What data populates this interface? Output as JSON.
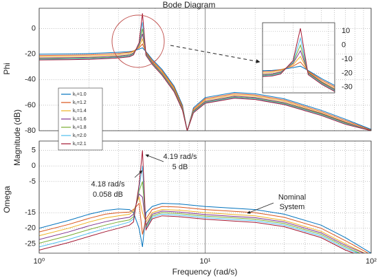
{
  "figure": {
    "title": "Bode Diagram",
    "ylabel": "Magnitude (dB)",
    "xlabel": "Frequency (rad/s)"
  },
  "chart_data": [
    {
      "type": "line",
      "ylabel": "Phi",
      "xlog": true,
      "grid": true,
      "xlim": [
        1,
        100
      ],
      "xticks": [
        {
          "value": 1,
          "label": "10⁰"
        },
        {
          "value": 10,
          "label": "10¹"
        },
        {
          "value": 100,
          "label": "10²"
        }
      ],
      "xminorticks": [
        2,
        3,
        4,
        5,
        6,
        7,
        8,
        9,
        20,
        30,
        40,
        50,
        60,
        70,
        80,
        90
      ],
      "ylim": [
        -80,
        16
      ],
      "yticks": [
        0,
        -20,
        -40,
        -60,
        -80
      ],
      "legend": "upper left",
      "x": [
        1,
        1.5,
        2,
        2.5,
        3,
        3.5,
        3.7,
        4.0,
        4.19,
        4.4,
        4.8,
        5.5,
        6.5,
        7.3,
        7.8,
        8.5,
        10,
        15,
        20,
        30,
        50,
        70,
        100
      ],
      "series": [
        {
          "name": "k₁=1.0",
          "color": "#0072BD",
          "values": [
            -20,
            -19.8,
            -19.5,
            -19,
            -18.5,
            -18,
            -17.5,
            -16,
            -15,
            -18,
            -24,
            -32,
            -45,
            -60,
            -80,
            -62,
            -54,
            -50,
            -51,
            -55,
            -64,
            -71,
            -79
          ]
        },
        {
          "name": "k₁=1.2",
          "color": "#D95319",
          "values": [
            -21,
            -20.8,
            -20.5,
            -20,
            -19.5,
            -18.5,
            -17.5,
            -15,
            -12,
            -18.5,
            -25,
            -33,
            -46,
            -61,
            -80,
            -63,
            -55,
            -51,
            -52,
            -56,
            -65,
            -72,
            -79.5
          ]
        },
        {
          "name": "k₁=1.4",
          "color": "#EDB120",
          "values": [
            -22,
            -21.8,
            -21.5,
            -21,
            -20.5,
            -19.5,
            -18,
            -14,
            -8,
            -19,
            -26,
            -34,
            -47,
            -62,
            -80,
            -64,
            -56,
            -52,
            -53,
            -57,
            -66,
            -73,
            -80
          ]
        },
        {
          "name": "k₁=1.6",
          "color": "#7E2F8E",
          "values": [
            -23,
            -22.8,
            -22.5,
            -22,
            -21.5,
            -20.5,
            -19,
            -13,
            -4,
            -19.5,
            -26.5,
            -35,
            -48,
            -62.5,
            -80,
            -64.5,
            -57,
            -53,
            -54,
            -58,
            -66.5,
            -73.5,
            -80
          ]
        },
        {
          "name": "k₁=1.8",
          "color": "#77AC30",
          "values": [
            -23.5,
            -23.3,
            -23,
            -22.5,
            -22,
            -21,
            -19.5,
            -12.5,
            0,
            -20,
            -27,
            -35.5,
            -48.5,
            -63,
            -80,
            -65,
            -57.5,
            -53.5,
            -54.5,
            -58.5,
            -67,
            -74,
            -80
          ]
        },
        {
          "name": "k₁=2.0",
          "color": "#4DBEEE",
          "values": [
            -24,
            -23.8,
            -23.5,
            -23,
            -22.5,
            -21.5,
            -20,
            -12,
            5,
            -20.5,
            -27.5,
            -36,
            -49,
            -63.5,
            -80,
            -65.5,
            -58,
            -54,
            -55,
            -59,
            -67.5,
            -74.5,
            -80
          ]
        },
        {
          "name": "k₁=2.1",
          "color": "#A2142F",
          "values": [
            -24.5,
            -24.3,
            -24,
            -23.5,
            -23,
            -22,
            -20.5,
            -11,
            12,
            -21,
            -28,
            -36.5,
            -49.5,
            -64,
            -80,
            -66,
            -58.5,
            -54.5,
            -55.5,
            -59.5,
            -68,
            -75,
            -80
          ]
        }
      ],
      "inset": {
        "xlim": [
          3.3,
          5.2
        ],
        "ylim": [
          -34,
          16
        ],
        "yticks": [
          10,
          0,
          -10,
          -20,
          -30
        ]
      }
    },
    {
      "type": "line",
      "ylabel": "Omega",
      "xlog": true,
      "grid": true,
      "xlim": [
        1,
        100
      ],
      "ylim": [
        -28,
        8
      ],
      "yticks": [
        5,
        0,
        -5,
        -15,
        -20,
        -25
      ],
      "annotations": [
        "4.19 rad/s",
        "5 dB",
        "4.18 rad/s",
        "0.058 dB",
        "Nominal",
        "System"
      ],
      "x": [
        1,
        1.5,
        2,
        2.5,
        3,
        3.5,
        3.7,
        4.0,
        4.19,
        4.4,
        4.8,
        5.5,
        7,
        10,
        15,
        20,
        30,
        50,
        70,
        100
      ],
      "series": [
        {
          "color": "#0072BD",
          "values": [
            -20,
            -17.5,
            -15.5,
            -14.3,
            -13.8,
            -14,
            -15,
            -20,
            -26,
            -15,
            -13,
            -12,
            -12.2,
            -13,
            -13.6,
            -14,
            -15.5,
            -19,
            -23,
            -28
          ]
        },
        {
          "color": "#D95319",
          "values": [
            -21.2,
            -18.8,
            -16.8,
            -15.5,
            -15,
            -14.8,
            -14,
            -12,
            -22,
            -17,
            -14,
            -13,
            -13.2,
            -14,
            -14.6,
            -15,
            -16.5,
            -20,
            -24,
            -28.5
          ]
        },
        {
          "color": "#EDB120",
          "values": [
            -22.4,
            -20,
            -18,
            -16.7,
            -16,
            -15.5,
            -14.5,
            -10,
            -15,
            -18,
            -15,
            -14,
            -14.2,
            -15,
            -15.6,
            -16,
            -17.5,
            -21,
            -25,
            -29
          ]
        },
        {
          "color": "#7E2F8E",
          "values": [
            -23.6,
            -21.2,
            -19.2,
            -17.9,
            -17,
            -16.5,
            -15.5,
            -9,
            -10,
            -19,
            -15.5,
            -14.5,
            -14.8,
            -15.6,
            -16.2,
            -16.6,
            -18,
            -21.5,
            -25.5,
            -29
          ]
        },
        {
          "color": "#77AC30",
          "values": [
            -24.8,
            -22.4,
            -20.4,
            -19,
            -18,
            -17.3,
            -16.3,
            -8,
            -5,
            -19.5,
            -16,
            -15,
            -15.3,
            -16.1,
            -16.7,
            -17.1,
            -18.5,
            -22,
            -26,
            -29.5
          ]
        },
        {
          "color": "#4DBEEE",
          "values": [
            -26,
            -23.6,
            -21.6,
            -20.1,
            -19,
            -18,
            -17,
            -7,
            0,
            -20,
            -16.5,
            -15.5,
            -15.8,
            -16.6,
            -17.2,
            -17.6,
            -19,
            -22.5,
            -26.5,
            -29.5
          ]
        },
        {
          "color": "#A2142F",
          "values": [
            -27,
            -24.6,
            -22.6,
            -21.1,
            -20,
            -19,
            -18,
            -6,
            5,
            -20.5,
            -17,
            -16,
            -16.3,
            -17.1,
            -17.7,
            -18.1,
            -19.5,
            -23,
            -27,
            -30
          ]
        }
      ]
    }
  ]
}
